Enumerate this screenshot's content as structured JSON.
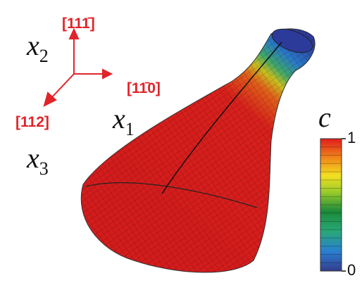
{
  "axes": [
    {
      "direction": "[111̄]",
      "label": {
        "base": "x",
        "sub": "2"
      }
    },
    {
      "direction": "[11̄0]",
      "label": {
        "base": "x",
        "sub": "1"
      }
    },
    {
      "direction": "[112]",
      "label": {
        "base": "x",
        "sub": "3"
      }
    }
  ],
  "colorbar": {
    "label": "c",
    "range": [
      0,
      1
    ],
    "ticks": [
      0,
      1
    ]
  }
}
